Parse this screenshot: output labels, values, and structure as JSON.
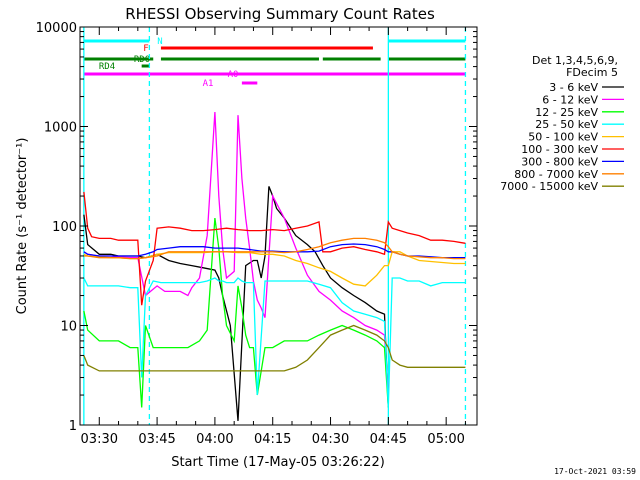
{
  "chart_data": {
    "type": "line",
    "title": "RHESSI Observing Summary Count Rates",
    "xlabel": "Start Time (17-May-05 03:26:22)",
    "ylabel": "Count Rate (s⁻¹ detector⁻¹)",
    "y_scale": "log",
    "ylim": [
      1,
      10000
    ],
    "xlim_minutes": [
      205,
      308
    ],
    "x_ticks": [
      {
        "label": "03:30",
        "t": 210
      },
      {
        "label": "03:45",
        "t": 225
      },
      {
        "label": "04:00",
        "t": 240
      },
      {
        "label": "04:15",
        "t": 255
      },
      {
        "label": "04:30",
        "t": 270
      },
      {
        "label": "04:45",
        "t": 285
      },
      {
        "label": "05:00",
        "t": 300
      }
    ],
    "y_ticks": [
      {
        "label": "1",
        "v": 1
      },
      {
        "label": "10",
        "v": 10
      },
      {
        "label": "100",
        "v": 100
      },
      {
        "label": "1000",
        "v": 1000
      },
      {
        "label": "10000",
        "v": 10000
      }
    ],
    "legend_header": [
      "Det 1,3,4,5,6,9,",
      "FDecim 5"
    ],
    "legend_position": "right",
    "series": [
      {
        "name": "3 - 6 keV",
        "color": "#000000",
        "t": [
          206,
          207,
          210,
          213,
          215,
          218,
          220,
          222,
          225,
          228,
          231,
          234,
          237,
          240,
          241,
          242,
          244,
          246,
          248,
          250,
          251,
          252,
          253,
          254,
          255,
          256,
          258,
          261,
          264,
          266,
          268,
          270,
          273,
          276,
          279,
          282,
          284,
          285
        ],
        "v": [
          130,
          65,
          52,
          52,
          50,
          50,
          50,
          48,
          52,
          45,
          42,
          40,
          38,
          36,
          30,
          20,
          10,
          1.1,
          40,
          45,
          45,
          30,
          50,
          250,
          200,
          150,
          120,
          80,
          65,
          55,
          40,
          30,
          24,
          20,
          17,
          14,
          13,
          1.5
        ]
      },
      {
        "name": "6 - 12 keV",
        "color": "#ff00ff",
        "t": [
          206,
          207,
          210,
          213,
          215,
          218,
          220,
          222,
          225,
          227,
          229,
          231,
          233,
          234,
          236,
          238,
          240,
          241,
          242,
          243,
          245,
          246,
          247,
          248,
          249,
          250,
          251,
          252,
          253,
          255,
          258,
          261,
          264,
          267,
          270,
          273,
          276,
          279,
          282,
          284,
          285
        ],
        "v": [
          55,
          52,
          50,
          50,
          49,
          48,
          48,
          20,
          25,
          22,
          22,
          22,
          20,
          24,
          30,
          80,
          1400,
          200,
          60,
          30,
          35,
          1300,
          300,
          120,
          60,
          28,
          18,
          15,
          12,
          200,
          120,
          60,
          32,
          22,
          18,
          14,
          12,
          10,
          9,
          8,
          2
        ]
      },
      {
        "name": "12 - 25 keV",
        "color": "#00ff00",
        "t": [
          206,
          207,
          210,
          213,
          215,
          218,
          220,
          221,
          222,
          224,
          226,
          228,
          230,
          233,
          236,
          238,
          240,
          241,
          242,
          243,
          245,
          246,
          247,
          248,
          249,
          250,
          251,
          253,
          255,
          258,
          261,
          264,
          267,
          270,
          273,
          276,
          279,
          282,
          284,
          285
        ],
        "v": [
          14,
          9,
          7,
          7,
          7,
          6,
          6,
          1.5,
          10,
          6,
          6,
          6,
          6,
          6,
          7,
          9,
          120,
          60,
          20,
          10,
          7,
          25,
          15,
          8,
          6,
          6,
          2,
          6,
          6,
          7,
          7,
          7,
          8,
          9,
          10,
          9,
          8,
          7,
          6,
          1.5
        ]
      },
      {
        "name": "25 - 50 keV",
        "color": "#00ffff",
        "t": [
          206,
          207,
          210,
          213,
          215,
          218,
          220,
          221,
          222,
          224,
          226,
          228,
          230,
          233,
          236,
          238,
          240,
          241,
          242,
          243,
          245,
          246,
          247,
          248,
          249,
          250,
          251,
          253,
          255,
          258,
          261,
          264,
          267,
          270,
          273,
          276,
          279,
          282,
          284,
          285,
          286,
          288,
          290,
          293,
          296,
          299,
          302,
          304,
          305
        ],
        "v": [
          30,
          25,
          25,
          25,
          25,
          24,
          24,
          3,
          20,
          28,
          27,
          27,
          27,
          27,
          27,
          28,
          30,
          28,
          28,
          27,
          27,
          30,
          28,
          27,
          27,
          27,
          2,
          28,
          28,
          28,
          28,
          28,
          26,
          24,
          17,
          14,
          13,
          12,
          11,
          1.5,
          30,
          30,
          28,
          28,
          25,
          27,
          27,
          27,
          27
        ]
      },
      {
        "name": "50 - 100 keV",
        "color": "#ffc000",
        "t": [
          206,
          207,
          210,
          213,
          215,
          218,
          220,
          222,
          225,
          228,
          231,
          234,
          237,
          240,
          243,
          246,
          249,
          252,
          255,
          258,
          261,
          264,
          267,
          270,
          273,
          276,
          279,
          282,
          284,
          285,
          286,
          288,
          290,
          293,
          296,
          299,
          302,
          304,
          305
        ],
        "v": [
          52,
          50,
          49,
          48,
          48,
          47,
          47,
          48,
          52,
          54,
          54,
          54,
          54,
          55,
          55,
          54,
          54,
          52,
          52,
          50,
          45,
          42,
          38,
          35,
          30,
          26,
          25,
          32,
          40,
          40,
          55,
          55,
          50,
          45,
          44,
          43,
          42,
          42,
          42
        ]
      },
      {
        "name": "100 - 300 keV",
        "color": "#ff0000",
        "t": [
          206,
          207,
          208,
          210,
          213,
          215,
          218,
          220,
          221,
          222,
          224,
          225,
          228,
          231,
          234,
          237,
          240,
          243,
          246,
          249,
          252,
          255,
          258,
          261,
          264,
          267,
          268,
          270,
          273,
          276,
          279,
          282,
          284,
          285,
          286,
          288,
          290,
          293,
          296,
          299,
          302,
          304,
          305
        ],
        "v": [
          220,
          95,
          78,
          75,
          75,
          72,
          72,
          72,
          16,
          28,
          45,
          95,
          98,
          95,
          90,
          90,
          92,
          95,
          92,
          90,
          90,
          92,
          90,
          95,
          100,
          110,
          55,
          55,
          60,
          62,
          58,
          55,
          52,
          110,
          95,
          90,
          85,
          80,
          72,
          72,
          70,
          68,
          67
        ]
      },
      {
        "name": "300 - 800 keV",
        "color": "#0000ff",
        "t": [
          206,
          207,
          210,
          213,
          215,
          218,
          220,
          222,
          224,
          225,
          228,
          231,
          234,
          237,
          240,
          243,
          246,
          249,
          252,
          255,
          258,
          261,
          264,
          267,
          270,
          273,
          276,
          279,
          282,
          284,
          285,
          286,
          288,
          290,
          293,
          296,
          299,
          302,
          304,
          305
        ],
        "v": [
          55,
          52,
          50,
          50,
          50,
          50,
          50,
          52,
          55,
          58,
          60,
          62,
          62,
          62,
          60,
          60,
          60,
          58,
          56,
          56,
          55,
          55,
          55,
          56,
          62,
          65,
          66,
          65,
          62,
          58,
          55,
          55,
          52,
          50,
          50,
          49,
          48,
          48,
          48,
          48
        ]
      },
      {
        "name": "800 - 7000 keV",
        "color": "#ff8000",
        "t": [
          206,
          207,
          210,
          213,
          215,
          218,
          220,
          222,
          225,
          228,
          231,
          234,
          237,
          240,
          243,
          246,
          249,
          252,
          255,
          258,
          261,
          264,
          267,
          270,
          273,
          276,
          279,
          282,
          284,
          285,
          286,
          288,
          290,
          293,
          296,
          299,
          302,
          304,
          305
        ],
        "v": [
          50,
          50,
          48,
          48,
          48,
          47,
          47,
          48,
          50,
          55,
          55,
          55,
          55,
          55,
          55,
          55,
          55,
          55,
          55,
          54,
          55,
          58,
          62,
          68,
          72,
          75,
          75,
          72,
          68,
          62,
          55,
          52,
          50,
          49,
          48,
          48,
          47,
          47,
          47
        ]
      },
      {
        "name": "7000 - 15000 keV",
        "color": "#808000",
        "t": [
          206,
          207,
          210,
          213,
          215,
          218,
          220,
          222,
          225,
          228,
          231,
          234,
          237,
          240,
          243,
          246,
          249,
          252,
          255,
          258,
          261,
          264,
          267,
          270,
          273,
          276,
          279,
          282,
          284,
          285,
          286,
          288,
          290,
          293,
          296,
          299,
          302,
          304,
          305
        ],
        "v": [
          5,
          4,
          3.5,
          3.5,
          3.5,
          3.5,
          3.5,
          3.5,
          3.5,
          3.5,
          3.5,
          3.5,
          3.5,
          3.5,
          3.5,
          3.5,
          3.5,
          3.5,
          3.5,
          3.5,
          3.8,
          4.5,
          6,
          8,
          9,
          10,
          9,
          8,
          7,
          6,
          4.5,
          4,
          3.8,
          3.8,
          3.8,
          3.8,
          3.8,
          3.8,
          3.8
        ]
      }
    ],
    "state_bars": [
      {
        "label": "N",
        "color": "#00ffff",
        "segments": [
          [
            206,
            223
          ],
          [
            285,
            305
          ]
        ]
      },
      {
        "label": "F",
        "color": "#ff0000",
        "segments": [
          [
            226,
            281
          ]
        ]
      },
      {
        "label": "RD0",
        "color": "#008000",
        "segments": [
          [
            206,
            224
          ],
          [
            226,
            267
          ],
          [
            268,
            283
          ],
          [
            285,
            305
          ]
        ]
      },
      {
        "label": "RD4",
        "color": "#008000",
        "segments": [
          [
            221,
            223
          ]
        ]
      },
      {
        "label": "A1",
        "color": "#ff00ff",
        "segments": [
          [
            206,
            305
          ],
          [
            241,
            249
          ]
        ]
      },
      {
        "label": "A0",
        "color": "#ff00ff",
        "segments": [
          [
            247,
            251
          ]
        ]
      }
    ],
    "vertical_markers": [
      {
        "t": 206,
        "color": "#00ffff",
        "style": "solid"
      },
      {
        "t": 223,
        "color": "#00ffff",
        "style": "dashed"
      },
      {
        "t": 285,
        "color": "#00ffff",
        "style": "solid"
      },
      {
        "t": 305,
        "color": "#00ffff",
        "style": "dashed"
      }
    ],
    "footer_date": "17-Oct-2021 03:59"
  }
}
